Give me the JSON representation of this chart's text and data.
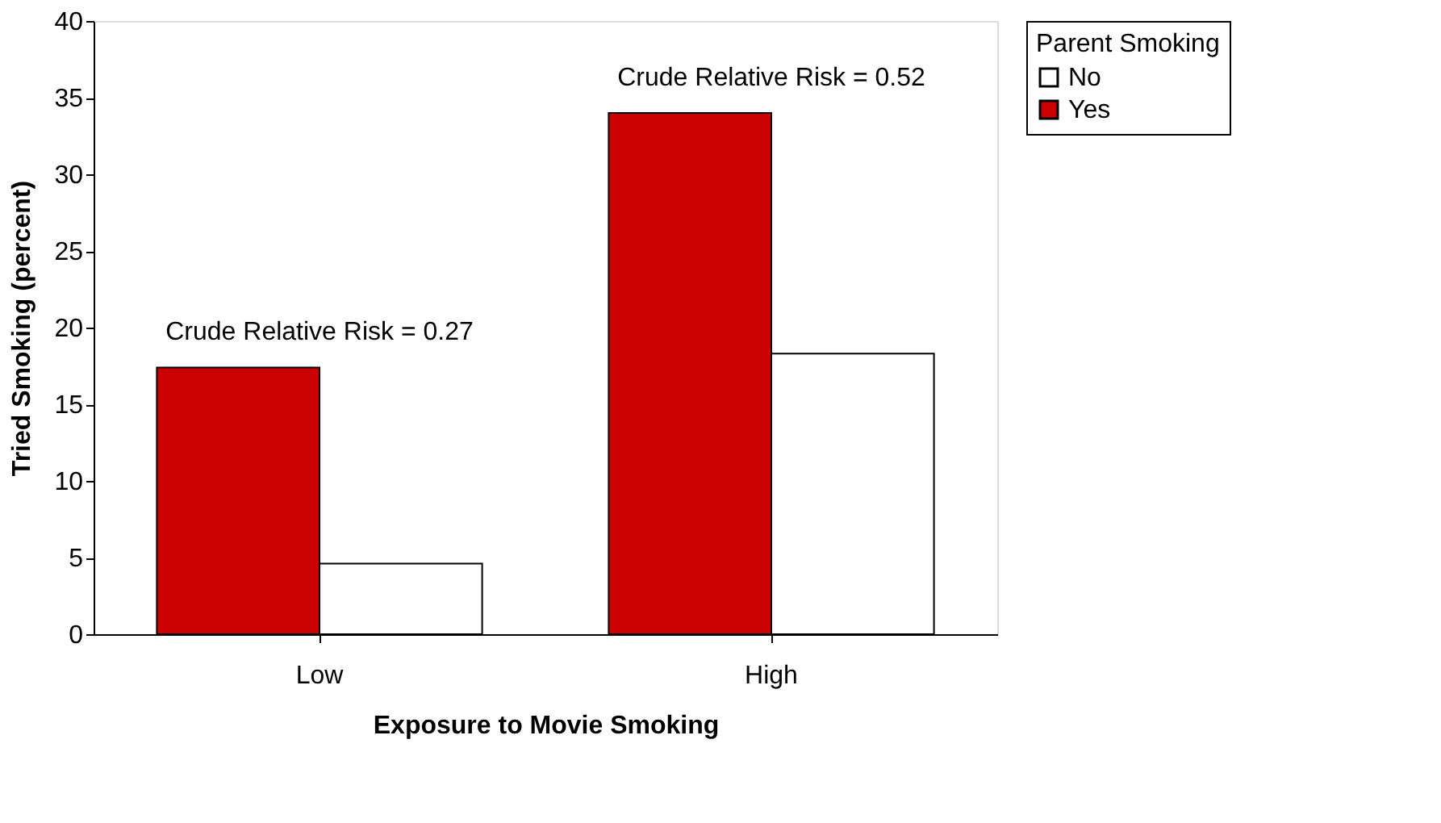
{
  "chart_data": {
    "type": "bar",
    "xlabel": "Exposure to Movie Smoking",
    "ylabel": "Tried Smoking (percent)",
    "legend_title": "Parent Smoking",
    "categories": [
      "Low",
      "High"
    ],
    "series": [
      {
        "name": "Yes",
        "color": "#cc0000",
        "values": [
          17.4,
          34.0
        ]
      },
      {
        "name": "No",
        "color": "#ffffff",
        "values": [
          4.6,
          18.3
        ]
      }
    ],
    "ylim": [
      0,
      40
    ],
    "yticks": [
      0,
      5,
      10,
      15,
      20,
      25,
      30,
      35,
      40
    ],
    "grid": false,
    "legend": "right",
    "annotations": [
      "Crude Relative Risk = 0.27",
      "Crude Relative Risk = 0.52"
    ]
  }
}
